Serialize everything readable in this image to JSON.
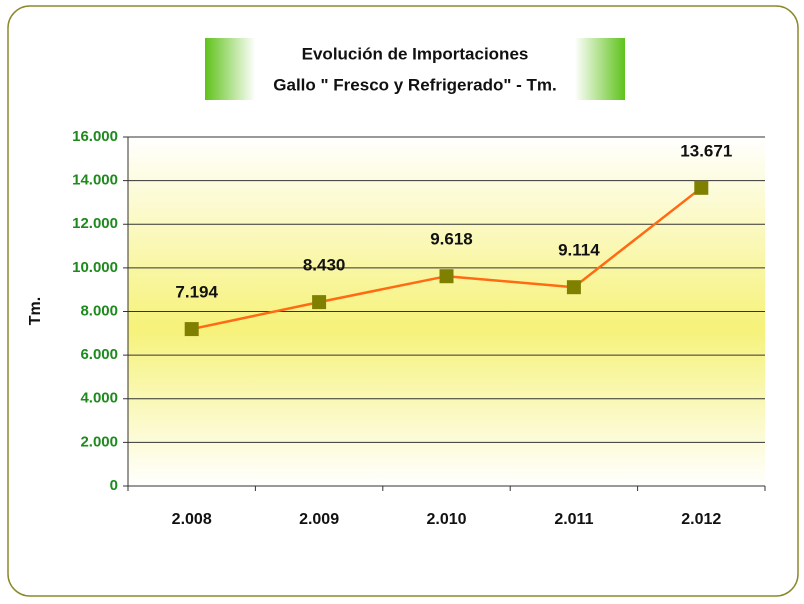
{
  "chart_data": {
    "type": "line",
    "title": "Evolución de Importaciones",
    "subtitle": "Gallo \" Fresco y Refrigerado\" - Tm.",
    "y_label": "Tm.",
    "categories": [
      "2.008",
      "2.009",
      "2.010",
      "2.011",
      "2.012"
    ],
    "values": [
      7194,
      8430,
      9618,
      9114,
      13671
    ],
    "value_labels": [
      "7.194",
      "8.430",
      "9.618",
      "9.114",
      "13.671"
    ],
    "color": "#ff6a13",
    "marker_color": "#808000",
    "ylim": [
      0,
      16000
    ],
    "yticks": [
      0,
      {
        "value": 2000,
        "label": "2.000"
      },
      {
        "value": 4000,
        "label": "4.000"
      },
      {
        "value": 6000,
        "label": "6.000"
      },
      {
        "value": 8000,
        "label": "8.000"
      },
      {
        "value": 10000,
        "label": "10.000"
      },
      {
        "value": 12000,
        "label": "12.000"
      },
      {
        "value": 14000,
        "label": "14.000"
      },
      {
        "value": 16000,
        "label": "16.000"
      }
    ],
    "grid": true
  }
}
